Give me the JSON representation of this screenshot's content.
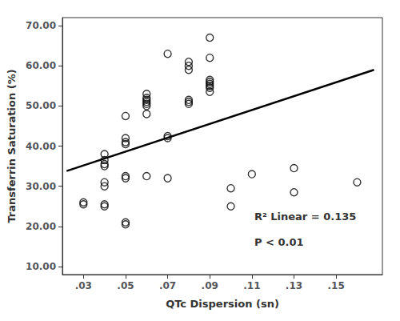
{
  "chart_data": {
    "type": "scatter",
    "xlabel": "QTc Dispersion (sn)",
    "ylabel": "Transferrin Saturation (%)",
    "annotations": [
      "R² Linear = 0.135",
      "P < 0.01"
    ],
    "grid": false,
    "xlim": [
      0.02,
      0.172
    ],
    "ylim": [
      8.0,
      72.0
    ],
    "xticks": [
      {
        "value": 0.03,
        "label": ".03"
      },
      {
        "value": 0.05,
        "label": ".05"
      },
      {
        "value": 0.07,
        "label": ".07"
      },
      {
        "value": 0.09,
        "label": ".09"
      },
      {
        "value": 0.11,
        "label": ".11"
      },
      {
        "value": 0.13,
        "label": ".13"
      },
      {
        "value": 0.15,
        "label": ".15"
      }
    ],
    "yticks": [
      {
        "value": 10.0,
        "label": "10.00"
      },
      {
        "value": 20.0,
        "label": "20.00"
      },
      {
        "value": 30.0,
        "label": "30.00"
      },
      {
        "value": 40.0,
        "label": "40.00"
      },
      {
        "value": 50.0,
        "label": "50.00"
      },
      {
        "value": 60.0,
        "label": "60.00"
      },
      {
        "value": 70.0,
        "label": "70.00"
      }
    ],
    "series": [
      {
        "type": "scatter",
        "color": "black",
        "marker": "open_circle",
        "x": [
          0.03,
          0.03,
          0.04,
          0.04,
          0.04,
          0.04,
          0.04,
          0.04,
          0.04,
          0.04,
          0.05,
          0.05,
          0.05,
          0.05,
          0.05,
          0.05,
          0.05,
          0.05,
          0.06,
          0.06,
          0.06,
          0.06,
          0.06,
          0.06,
          0.06,
          0.06,
          0.07,
          0.07,
          0.07,
          0.07,
          0.08,
          0.08,
          0.08,
          0.08,
          0.08,
          0.08,
          0.09,
          0.09,
          0.09,
          0.09,
          0.09,
          0.09,
          0.09,
          0.09,
          0.1,
          0.1,
          0.11,
          0.13,
          0.13,
          0.16
        ],
        "values": [
          25.5,
          26.0,
          35.0,
          35.5,
          36.5,
          38.0,
          30.0,
          31.0,
          25.0,
          25.5,
          40.5,
          41.0,
          47.5,
          42.0,
          32.0,
          32.5,
          20.5,
          21.0,
          50.0,
          50.5,
          51.0,
          51.5,
          52.0,
          48.0,
          53.0,
          32.5,
          42.0,
          42.5,
          63.0,
          32.0,
          50.5,
          51.0,
          51.5,
          59.0,
          60.0,
          61.0,
          67.0,
          62.0,
          55.5,
          56.0,
          56.5,
          54.5,
          55.0,
          53.5,
          25.0,
          29.5,
          33.0,
          28.5,
          34.5,
          31.0
        ]
      },
      {
        "type": "line",
        "color": "black",
        "x": [
          0.022,
          0.168
        ],
        "values": [
          33.8,
          59.0
        ]
      }
    ]
  }
}
